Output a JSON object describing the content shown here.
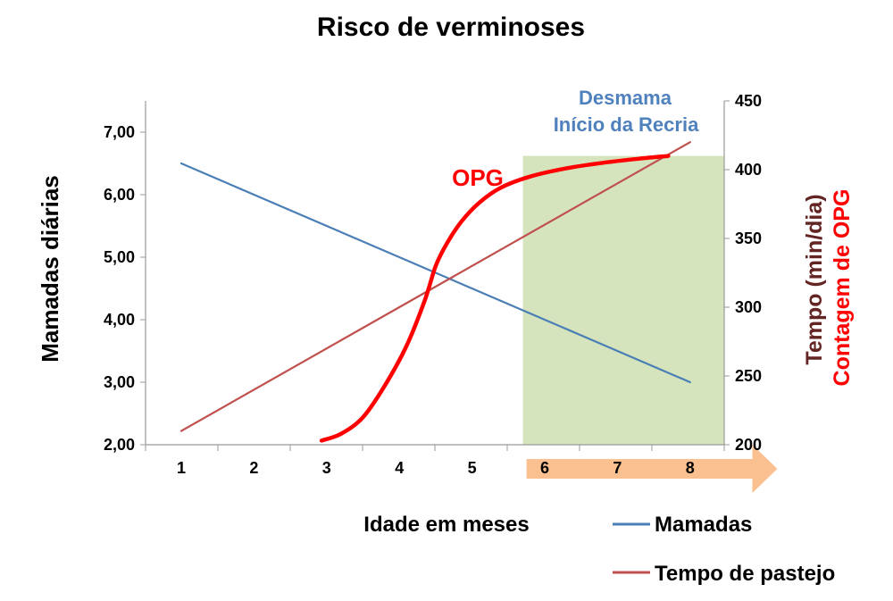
{
  "chart_data": {
    "type": "line",
    "title": "Risco de verminoses",
    "xlabel": "Idade em meses",
    "x_ticks": [
      "1",
      "2",
      "3",
      "4",
      "5",
      "6",
      "7",
      "8"
    ],
    "y_left": {
      "label": "Mamadas diárias",
      "range": [
        2,
        7.5
      ],
      "ticks": [
        "2,00",
        "3,00",
        "4,00",
        "5,00",
        "6,00",
        "7,00"
      ]
    },
    "y_right": {
      "label_primary": "Tempo (min/dia)",
      "label_secondary": "Contagem de OPG",
      "range": [
        200,
        450
      ],
      "ticks": [
        "200",
        "250",
        "300",
        "350",
        "400",
        "450"
      ]
    },
    "series": [
      {
        "name": "Mamadas",
        "axis": "left",
        "color": "#4a7fb5",
        "x": [
          1,
          8
        ],
        "y": [
          6.5,
          3.0
        ]
      },
      {
        "name": "Tempo de pastejo",
        "axis": "right",
        "color": "#c0504d",
        "x": [
          1,
          8
        ],
        "y": [
          210,
          420
        ]
      },
      {
        "name": "OPG",
        "axis": "right",
        "color": "#ff0000",
        "x": [
          2.93,
          3.2,
          3.5,
          3.8,
          4.1,
          4.35,
          4.5,
          4.65,
          4.85,
          5.1,
          5.4,
          5.8,
          6.3,
          6.8,
          7.3,
          7.7
        ],
        "y": [
          203,
          208,
          220,
          243,
          272,
          305,
          330,
          346,
          362,
          376,
          387,
          395,
          401,
          405,
          408,
          410
        ]
      }
    ],
    "highlight": {
      "x_start": 5.7,
      "x_end": 8.5,
      "y_top": 410,
      "color": "#d6e4bd"
    },
    "arrow": {
      "x_start": 5.75,
      "x_end": 9.2,
      "color": "#fac090"
    },
    "annotations": {
      "opg_label": "OPG",
      "desmama_line1": "Desmama",
      "desmama_line2": "Início da Recria"
    },
    "legend": {
      "placement": "bottom-right",
      "entries": [
        "Mamadas",
        "Tempo de pastejo"
      ]
    }
  }
}
